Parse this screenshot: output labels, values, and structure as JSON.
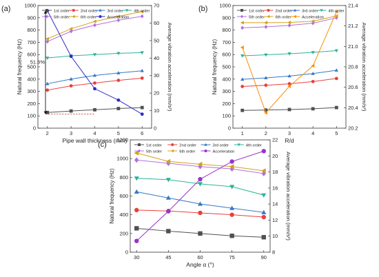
{
  "chart_data": [
    {
      "panel_label": "(a)",
      "type": "line",
      "xlabel": "Pipe wall thickness (mm)",
      "ylabel": "Natural frequency (Hz)",
      "y2label": "Average vibration acceleration (mm/s²)",
      "x": [
        2,
        3,
        4,
        5,
        6
      ],
      "xticks": [
        "2",
        "3",
        "4",
        "5",
        "6"
      ],
      "xlim": [
        1.6,
        6.4
      ],
      "ylim": [
        0,
        1000
      ],
      "yticks": [
        0,
        100,
        200,
        300,
        400,
        500,
        600,
        700,
        800,
        900,
        1000
      ],
      "y2lim": [
        0,
        70
      ],
      "y2ticks": [
        0,
        10,
        20,
        30,
        40,
        50,
        60,
        70
      ],
      "legend": "top",
      "series": [
        {
          "name": "1st order",
          "color": "#505050",
          "marker": "square",
          "axis": "left",
          "values": [
            128,
            140,
            150,
            160,
            168
          ]
        },
        {
          "name": "2nd order",
          "color": "#e8403c",
          "marker": "circle",
          "axis": "left",
          "values": [
            310,
            345,
            368,
            390,
            408
          ]
        },
        {
          "name": "3rd order",
          "color": "#3478c8",
          "marker": "triangle-up",
          "axis": "left",
          "values": [
            362,
            400,
            430,
            450,
            468
          ]
        },
        {
          "name": "4th order",
          "color": "#2bb39a",
          "marker": "triangle-down",
          "axis": "left",
          "values": [
            572,
            590,
            600,
            610,
            616
          ]
        },
        {
          "name": "5th order",
          "color": "#b070e0",
          "marker": "diamond",
          "axis": "left",
          "values": [
            706,
            790,
            840,
            880,
            912
          ]
        },
        {
          "name": "6th order",
          "color": "#d4a017",
          "marker": "triangle-left",
          "axis": "left",
          "values": [
            728,
            810,
            870,
            912,
            950
          ]
        },
        {
          "name": "Acceleration",
          "color": "#2c2cc8",
          "marker": "circle",
          "axis": "right",
          "values": [
            67,
            41,
            22.5,
            16,
            8
          ]
        }
      ],
      "annotations": [
        {
          "text": "51.6%"
        }
      ]
    },
    {
      "panel_label": "(b)",
      "type": "line",
      "xlabel": "R/d",
      "ylabel": "Natural frequency (Hz)",
      "y2label": "Average vibration acceleration (mm/s²)",
      "x": [
        1,
        2,
        3,
        4,
        5
      ],
      "xticks": [
        "1",
        "2",
        "3",
        "4",
        "5"
      ],
      "xlim": [
        0.6,
        5.4
      ],
      "ylim": [
        0,
        1000
      ],
      "yticks": [
        0,
        100,
        200,
        300,
        400,
        500,
        600,
        700,
        800,
        900,
        1000
      ],
      "y2lim": [
        20.2,
        21.4
      ],
      "y2ticks": [
        "20.2",
        "20.4",
        "20.6",
        "20.8",
        "21.0",
        "21.2",
        "21.4"
      ],
      "legend": "top",
      "series": [
        {
          "name": "1st order",
          "color": "#505050",
          "marker": "square",
          "axis": "left",
          "values": [
            145,
            148,
            152,
            158,
            168
          ]
        },
        {
          "name": "2nd order",
          "color": "#e8403c",
          "marker": "circle",
          "axis": "left",
          "values": [
            340,
            350,
            362,
            380,
            405
          ]
        },
        {
          "name": "3rd order",
          "color": "#3478c8",
          "marker": "triangle-up",
          "axis": "left",
          "values": [
            398,
            410,
            425,
            445,
            472
          ]
        },
        {
          "name": "4th order",
          "color": "#2bb39a",
          "marker": "triangle-down",
          "axis": "left",
          "values": [
            590,
            598,
            607,
            618,
            632
          ]
        },
        {
          "name": "5th order",
          "color": "#b070e0",
          "marker": "diamond",
          "axis": "left",
          "values": [
            818,
            826,
            838,
            856,
            900
          ]
        },
        {
          "name": "6th order",
          "color": "#d4a017",
          "marker": "triangle-left",
          "axis": "left",
          "values": [
            860,
            860,
            862,
            872,
            915
          ]
        },
        {
          "name": "Acceleration",
          "color": "#ff8c00",
          "marker": "triangle-left",
          "axis": "right",
          "values": [
            20.99,
            20.35,
            20.61,
            20.81,
            21.34
          ]
        }
      ]
    },
    {
      "panel_label": "(c)",
      "type": "line",
      "xlabel": "Angle α (°)",
      "ylabel": "Natural frequency (Hz)",
      "y2label": "Average vibration acceleration (mm/s²)",
      "x": [
        30,
        45,
        60,
        75,
        90
      ],
      "xticks": [
        "30",
        "45",
        "60",
        "75",
        "90"
      ],
      "xlim": [
        27,
        93
      ],
      "ylim": [
        0,
        1200
      ],
      "yticks": [
        0,
        200,
        400,
        600,
        800,
        1000,
        1200
      ],
      "y2lim": [
        8,
        22
      ],
      "y2ticks": [
        8,
        10,
        12,
        14,
        16,
        18,
        20,
        22
      ],
      "legend": "top",
      "series": [
        {
          "name": "1st order",
          "color": "#505050",
          "marker": "square",
          "axis": "left",
          "values": [
            255,
            225,
            200,
            175,
            160
          ]
        },
        {
          "name": "2nd order",
          "color": "#e8403c",
          "marker": "circle",
          "axis": "left",
          "values": [
            450,
            440,
            420,
            400,
            375
          ]
        },
        {
          "name": "3rd order",
          "color": "#3478c8",
          "marker": "triangle-up",
          "axis": "left",
          "values": [
            645,
            580,
            515,
            470,
            425
          ]
        },
        {
          "name": "4th order",
          "color": "#2bb39a",
          "marker": "triangle-down",
          "axis": "left",
          "values": [
            790,
            775,
            730,
            700,
            610
          ]
        },
        {
          "name": "5th order",
          "color": "#b070e0",
          "marker": "diamond",
          "axis": "left",
          "values": [
            985,
            950,
            915,
            890,
            840
          ]
        },
        {
          "name": "6th order",
          "color": "#d4a017",
          "marker": "triangle-left",
          "axis": "left",
          "values": [
            1060,
            970,
            940,
            915,
            870
          ]
        },
        {
          "name": "Acceleration",
          "color": "#9932cc",
          "marker": "circle",
          "axis": "right",
          "values": [
            9.4,
            13.1,
            17.1,
            19.3,
            20.6
          ]
        }
      ]
    }
  ]
}
